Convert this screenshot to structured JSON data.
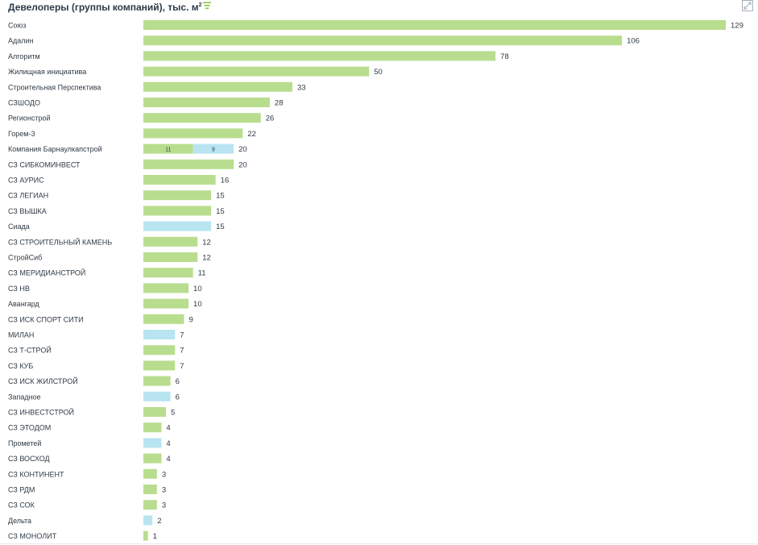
{
  "header": {
    "title": "Девелоперы (группы компаний), тыс. м",
    "title_sup": "2"
  },
  "colors": {
    "primary_bar": "#b9dd8f",
    "secondary_bar": "#b9e4f1",
    "text": "#2f3a45",
    "icon_accent": "#8cc63f",
    "icon_muted": "#a7b1ba"
  },
  "chart_data": {
    "type": "bar",
    "orientation": "horizontal",
    "stacked": true,
    "xlim": [
      0,
      129
    ],
    "grid": false,
    "rows": [
      {
        "label": "Союз",
        "segments": [
          {
            "value": 129,
            "color": "primary"
          }
        ],
        "total": "129",
        "seg_labels": false
      },
      {
        "label": "Адалин",
        "segments": [
          {
            "value": 106,
            "color": "primary"
          }
        ],
        "total": "106",
        "seg_labels": false
      },
      {
        "label": "Алгоритм",
        "segments": [
          {
            "value": 78,
            "color": "primary"
          }
        ],
        "total": "78",
        "seg_labels": false
      },
      {
        "label": "Жилищная инициатива",
        "segments": [
          {
            "value": 50,
            "color": "primary"
          }
        ],
        "total": "50",
        "seg_labels": false
      },
      {
        "label": "Строительная Перспектива",
        "segments": [
          {
            "value": 33,
            "color": "primary"
          }
        ],
        "total": "33",
        "seg_labels": false
      },
      {
        "label": "СЗШОДО",
        "segments": [
          {
            "value": 28,
            "color": "primary"
          }
        ],
        "total": "28",
        "seg_labels": false
      },
      {
        "label": "Регионстрой",
        "segments": [
          {
            "value": 26,
            "color": "primary"
          }
        ],
        "total": "26",
        "seg_labels": false
      },
      {
        "label": "Горем-3",
        "segments": [
          {
            "value": 22,
            "color": "primary"
          }
        ],
        "total": "22",
        "seg_labels": false
      },
      {
        "label": "Компания Барнаулкапстрой",
        "segments": [
          {
            "value": 11,
            "color": "primary",
            "text": "11"
          },
          {
            "value": 9,
            "color": "secondary",
            "text": "9"
          }
        ],
        "total": "20",
        "seg_labels": true
      },
      {
        "label": "СЗ СИБКОМИНВЕСТ",
        "segments": [
          {
            "value": 20,
            "color": "primary"
          }
        ],
        "total": "20",
        "seg_labels": false
      },
      {
        "label": "СЗ АУРИС",
        "segments": [
          {
            "value": 16,
            "color": "primary"
          }
        ],
        "total": "16",
        "seg_labels": false
      },
      {
        "label": "СЗ ЛЕГИАН",
        "segments": [
          {
            "value": 15,
            "color": "primary"
          }
        ],
        "total": "15",
        "seg_labels": false
      },
      {
        "label": "СЗ ВЫШКА",
        "segments": [
          {
            "value": 15,
            "color": "primary"
          }
        ],
        "total": "15",
        "seg_labels": false
      },
      {
        "label": "Сиада",
        "segments": [
          {
            "value": 15,
            "color": "secondary"
          }
        ],
        "total": "15",
        "seg_labels": false
      },
      {
        "label": "СЗ СТРОИТЕЛЬНЫЙ КАМЕНЬ",
        "segments": [
          {
            "value": 12,
            "color": "primary"
          }
        ],
        "total": "12",
        "seg_labels": false
      },
      {
        "label": "СтройСиб",
        "segments": [
          {
            "value": 12,
            "color": "primary"
          }
        ],
        "total": "12",
        "seg_labels": false
      },
      {
        "label": "СЗ МЕРИДИАНСТРОЙ",
        "segments": [
          {
            "value": 11,
            "color": "primary"
          }
        ],
        "total": "11",
        "seg_labels": false
      },
      {
        "label": "СЗ НВ",
        "segments": [
          {
            "value": 10,
            "color": "primary"
          }
        ],
        "total": "10",
        "seg_labels": false
      },
      {
        "label": "Авангард",
        "segments": [
          {
            "value": 10,
            "color": "primary"
          }
        ],
        "total": "10",
        "seg_labels": false
      },
      {
        "label": "СЗ ИСК СПОРТ СИТИ",
        "segments": [
          {
            "value": 9,
            "color": "primary"
          }
        ],
        "total": "9",
        "seg_labels": false
      },
      {
        "label": "МИЛАН",
        "segments": [
          {
            "value": 7,
            "color": "secondary"
          }
        ],
        "total": "7",
        "seg_labels": false
      },
      {
        "label": "СЗ Т-СТРОЙ",
        "segments": [
          {
            "value": 7,
            "color": "primary"
          }
        ],
        "total": "7",
        "seg_labels": false
      },
      {
        "label": "СЗ КУБ",
        "segments": [
          {
            "value": 7,
            "color": "primary"
          }
        ],
        "total": "7",
        "seg_labels": false
      },
      {
        "label": "СЗ ИСК ЖИЛСТРОЙ",
        "segments": [
          {
            "value": 6,
            "color": "primary"
          }
        ],
        "total": "6",
        "seg_labels": false
      },
      {
        "label": "Западное",
        "segments": [
          {
            "value": 6,
            "color": "secondary"
          }
        ],
        "total": "6",
        "seg_labels": false
      },
      {
        "label": "СЗ ИНВЕСТСТРОЙ",
        "segments": [
          {
            "value": 5,
            "color": "primary"
          }
        ],
        "total": "5",
        "seg_labels": false
      },
      {
        "label": "СЗ ЭТОДОМ",
        "segments": [
          {
            "value": 4,
            "color": "primary"
          }
        ],
        "total": "4",
        "seg_labels": false
      },
      {
        "label": "Прометей",
        "segments": [
          {
            "value": 4,
            "color": "secondary"
          }
        ],
        "total": "4",
        "seg_labels": false
      },
      {
        "label": "СЗ ВОСХОД",
        "segments": [
          {
            "value": 4,
            "color": "primary"
          }
        ],
        "total": "4",
        "seg_labels": false
      },
      {
        "label": "СЗ КОНТИНЕНТ",
        "segments": [
          {
            "value": 3,
            "color": "primary"
          }
        ],
        "total": "3",
        "seg_labels": false
      },
      {
        "label": "СЗ РДМ",
        "segments": [
          {
            "value": 3,
            "color": "primary"
          }
        ],
        "total": "3",
        "seg_labels": false
      },
      {
        "label": "СЗ СОК",
        "segments": [
          {
            "value": 3,
            "color": "primary"
          }
        ],
        "total": "3",
        "seg_labels": false
      },
      {
        "label": "Дельта",
        "segments": [
          {
            "value": 2,
            "color": "secondary"
          }
        ],
        "total": "2",
        "seg_labels": false
      },
      {
        "label": "СЗ МОНОЛИТ",
        "segments": [
          {
            "value": 1,
            "color": "primary"
          }
        ],
        "total": "1",
        "seg_labels": false
      }
    ]
  }
}
